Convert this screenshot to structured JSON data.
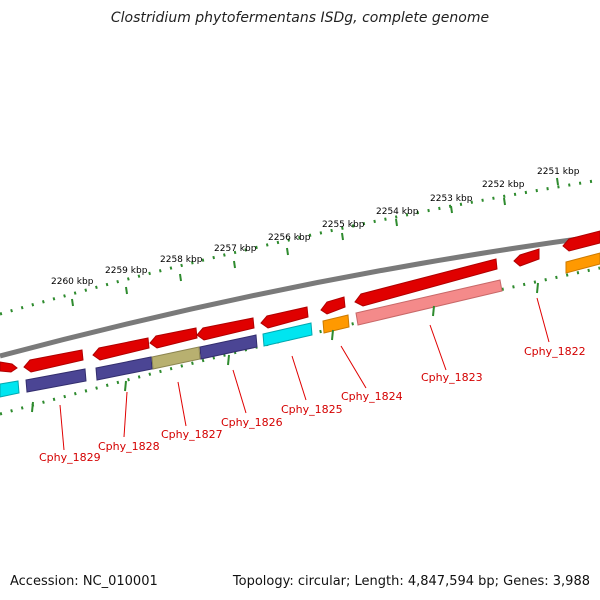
{
  "title": "Clostridium phytofermentans ISDg, complete genome",
  "footer": {
    "accession": "Accession: NC_010001",
    "topology": "Topology: circular; Length: 4,847,594 bp; Genes: 3,988"
  },
  "colors": {
    "background": "#ffffff",
    "backbone": "#7a7a7a",
    "tick": "#2e8b2e",
    "forward_gene": "#e00000",
    "label": "#d40000"
  },
  "scale_labels": [
    "2251 kbp",
    "2252 kbp",
    "2253 kbp",
    "2254 kbp",
    "2255 kbp",
    "2256 kbp",
    "2257 kbp",
    "2258 kbp",
    "2259 kbp",
    "2260 kbp"
  ],
  "gene_labels": [
    "Cphy_1822",
    "Cphy_1823",
    "Cphy_1824",
    "Cphy_1825",
    "Cphy_1826",
    "Cphy_1827",
    "Cphy_1828",
    "Cphy_1829"
  ],
  "functional_category_colors": [
    "#ff9900",
    "#f48a8a",
    "#ff9900",
    "#00e5f0",
    "#4b4594",
    "#b8b070",
    "#4b4594",
    "#4b4594",
    "#00e5f0"
  ]
}
